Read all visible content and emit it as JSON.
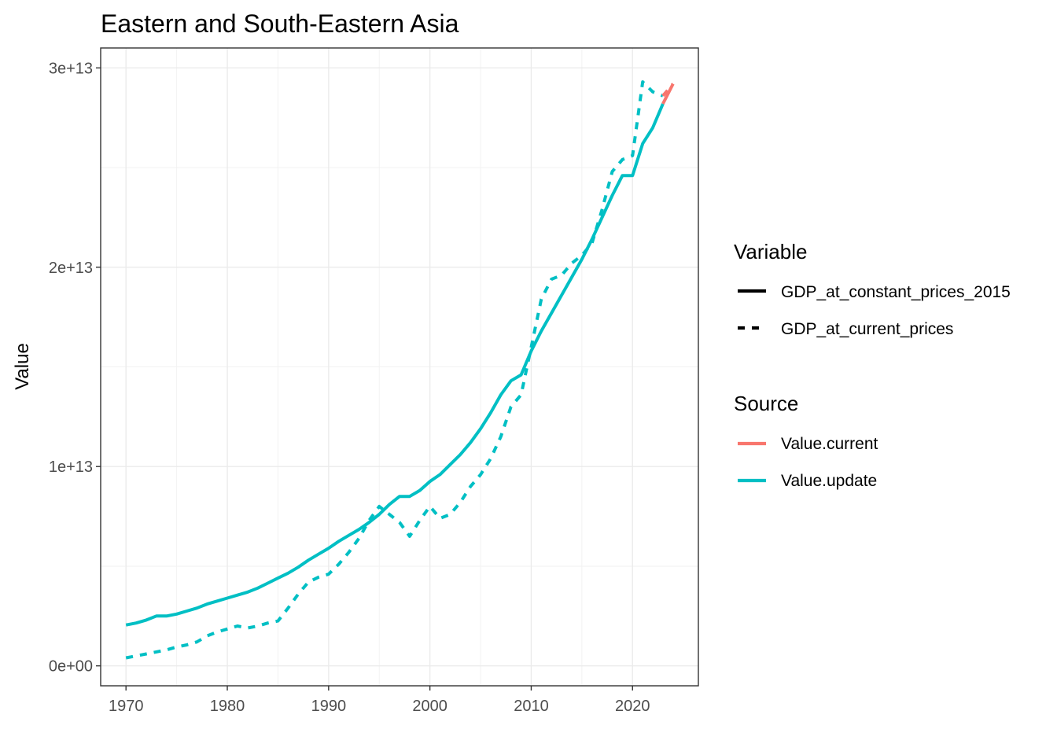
{
  "chart_data": {
    "type": "line",
    "title": "Eastern and South-Eastern Asia",
    "xlabel": "",
    "ylabel": "Value",
    "xlim": [
      1967.5,
      2026.5
    ],
    "ylim": [
      -1000000000000.0,
      31000000000000.0
    ],
    "x_ticks": [
      1970,
      1980,
      1990,
      2000,
      2010,
      2020
    ],
    "x_tick_labels": [
      "1970",
      "1980",
      "1990",
      "2000",
      "2010",
      "2020"
    ],
    "y_ticks": [
      0,
      10000000000000.0,
      20000000000000.0,
      30000000000000.0
    ],
    "y_tick_labels": [
      "0e+00",
      "1e+13",
      "2e+13",
      "3e+13"
    ],
    "grid": true,
    "legend_position": "right",
    "colors": {
      "Value.current": "#F8766D",
      "Value.update": "#00BFC4"
    },
    "legends": [
      {
        "title": "Variable",
        "entries": [
          {
            "label": "GDP_at_constant_prices_2015",
            "linetype": "solid"
          },
          {
            "label": "GDP_at_current_prices",
            "linetype": "dashed"
          }
        ]
      },
      {
        "title": "Source",
        "entries": [
          {
            "label": "Value.current",
            "color": "#F8766D"
          },
          {
            "label": "Value.update",
            "color": "#00BFC4"
          }
        ]
      }
    ],
    "series": [
      {
        "variable": "GDP_at_constant_prices_2015",
        "source": "Value.update",
        "x": [
          1970,
          1971,
          1972,
          1973,
          1974,
          1975,
          1976,
          1977,
          1978,
          1979,
          1980,
          1981,
          1982,
          1983,
          1984,
          1985,
          1986,
          1987,
          1988,
          1989,
          1990,
          1991,
          1992,
          1993,
          1994,
          1995,
          1996,
          1997,
          1998,
          1999,
          2000,
          2001,
          2002,
          2003,
          2004,
          2005,
          2006,
          2007,
          2008,
          2009,
          2010,
          2011,
          2012,
          2013,
          2014,
          2015,
          2016,
          2017,
          2018,
          2019,
          2020,
          2021,
          2022,
          2023
        ],
        "y": [
          2050000000000.0,
          2150000000000.0,
          2300000000000.0,
          2500000000000.0,
          2500000000000.0,
          2600000000000.0,
          2750000000000.0,
          2900000000000.0,
          3100000000000.0,
          3250000000000.0,
          3400000000000.0,
          3550000000000.0,
          3700000000000.0,
          3900000000000.0,
          4150000000000.0,
          4400000000000.0,
          4650000000000.0,
          4950000000000.0,
          5300000000000.0,
          5600000000000.0,
          5900000000000.0,
          6250000000000.0,
          6550000000000.0,
          6850000000000.0,
          7200000000000.0,
          7600000000000.0,
          8100000000000.0,
          8500000000000.0,
          8500000000000.0,
          8800000000000.0,
          9250000000000.0,
          9600000000000.0,
          10100000000000.0,
          10600000000000.0,
          11200000000000.0,
          11900000000000.0,
          12700000000000.0,
          13600000000000.0,
          14300000000000.0,
          14600000000000.0,
          15800000000000.0,
          16800000000000.0,
          17700000000000.0,
          18600000000000.0,
          19500000000000.0,
          20400000000000.0,
          21400000000000.0,
          22500000000000.0,
          23600000000000.0,
          24600000000000.0,
          24600000000000.0,
          26200000000000.0,
          27000000000000.0,
          28200000000000.0
        ]
      },
      {
        "variable": "GDP_at_current_prices",
        "source": "Value.update",
        "x": [
          1970,
          1971,
          1972,
          1973,
          1974,
          1975,
          1976,
          1977,
          1978,
          1979,
          1980,
          1981,
          1982,
          1983,
          1984,
          1985,
          1986,
          1987,
          1988,
          1989,
          1990,
          1991,
          1992,
          1993,
          1994,
          1995,
          1996,
          1997,
          1998,
          1999,
          2000,
          2001,
          2002,
          2003,
          2004,
          2005,
          2006,
          2007,
          2008,
          2009,
          2010,
          2011,
          2012,
          2013,
          2014,
          2015,
          2016,
          2017,
          2018,
          2019,
          2020,
          2021,
          2022,
          2023
        ],
        "y": [
          400000000000.0,
          500000000000.0,
          600000000000.0,
          700000000000.0,
          800000000000.0,
          950000000000.0,
          1050000000000.0,
          1200000000000.0,
          1500000000000.0,
          1700000000000.0,
          1850000000000.0,
          2000000000000.0,
          1900000000000.0,
          2000000000000.0,
          2150000000000.0,
          2250000000000.0,
          2900000000000.0,
          3600000000000.0,
          4200000000000.0,
          4450000000000.0,
          4600000000000.0,
          5100000000000.0,
          5700000000000.0,
          6400000000000.0,
          7300000000000.0,
          8000000000000.0,
          7600000000000.0,
          7200000000000.0,
          6500000000000.0,
          7300000000000.0,
          8000000000000.0,
          7400000000000.0,
          7600000000000.0,
          8200000000000.0,
          9000000000000.0,
          9600000000000.0,
          10400000000000.0,
          11500000000000.0,
          13000000000000.0,
          13600000000000.0,
          16000000000000.0,
          18400000000000.0,
          19400000000000.0,
          19600000000000.0,
          20200000000000.0,
          20600000000000.0,
          21200000000000.0,
          22900000000000.0,
          24800000000000.0,
          25400000000000.0,
          25600000000000.0,
          29300000000000.0,
          28800000000000.0,
          28600000000000.0
        ]
      },
      {
        "variable": "GDP_at_constant_prices_2015",
        "source": "Value.current",
        "x": [
          2023,
          2024
        ],
        "y": [
          28200000000000.0,
          29200000000000.0
        ]
      },
      {
        "variable": "GDP_at_current_prices",
        "source": "Value.current",
        "x": [
          2023,
          2024
        ],
        "y": [
          28600000000000.0,
          29200000000000.0
        ]
      }
    ]
  }
}
